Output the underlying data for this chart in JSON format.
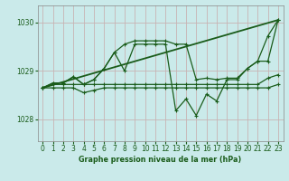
{
  "bg_color": "#caeaea",
  "grid_color_major": "#b0d4c8",
  "grid_color_minor": "#f0c8c8",
  "line_color": "#1a5c1a",
  "xlabel": "Graphe pression niveau de la mer (hPa)",
  "ylabel_ticks": [
    1028,
    1029,
    1030
  ],
  "xlim": [
    -0.5,
    23.5
  ],
  "ylim": [
    1027.55,
    1030.35
  ],
  "xticks": [
    0,
    1,
    2,
    3,
    4,
    5,
    6,
    7,
    8,
    9,
    10,
    11,
    12,
    13,
    14,
    15,
    16,
    17,
    18,
    19,
    20,
    21,
    22,
    23
  ],
  "series_high": [
    1028.65,
    1028.75,
    1028.75,
    1028.88,
    1028.72,
    1028.82,
    1029.05,
    1029.38,
    1029.55,
    1029.62,
    1029.62,
    1029.62,
    1029.62,
    1029.55,
    1029.55,
    1028.82,
    1028.85,
    1028.82,
    1028.85,
    1028.85,
    1029.05,
    1029.2,
    1029.2,
    1030.05
  ],
  "series_mid1": [
    1028.65,
    1028.75,
    1028.75,
    1028.88,
    1028.72,
    1028.82,
    1029.05,
    1029.38,
    1029.0,
    1029.55,
    1029.55,
    1029.55,
    1029.55,
    1028.18,
    1028.42,
    1028.08,
    1028.52,
    1028.38,
    1028.82,
    1028.82,
    1029.05,
    1029.2,
    1029.72,
    1030.05
  ],
  "series_flat1": [
    1028.65,
    1028.72,
    1028.72,
    1028.72,
    1028.72,
    1028.72,
    1028.72,
    1028.72,
    1028.72,
    1028.72,
    1028.72,
    1028.72,
    1028.72,
    1028.72,
    1028.72,
    1028.72,
    1028.72,
    1028.72,
    1028.72,
    1028.72,
    1028.72,
    1028.72,
    1028.85,
    1028.92
  ],
  "series_flat2": [
    1028.65,
    1028.65,
    1028.65,
    1028.65,
    1028.55,
    1028.6,
    1028.65,
    1028.65,
    1028.65,
    1028.65,
    1028.65,
    1028.65,
    1028.65,
    1028.65,
    1028.65,
    1028.65,
    1028.65,
    1028.65,
    1028.65,
    1028.65,
    1028.65,
    1028.65,
    1028.65,
    1028.72
  ],
  "trend_x": [
    0,
    23
  ],
  "trend_y": [
    1028.65,
    1030.05
  ]
}
